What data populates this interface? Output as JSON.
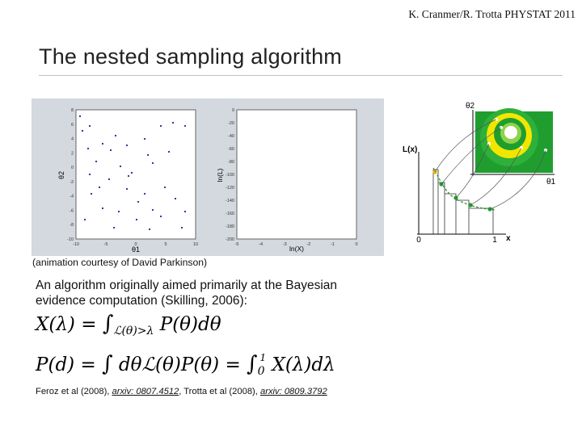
{
  "header_note": "K. Cranmer/R. Trotta PHYSTAT 2011",
  "title": "The nested sampling algorithm",
  "animation": {
    "caption": "(animation courtesy of David Parkinson)",
    "left_plot": {
      "xlabel": "θ1",
      "ylabel": "θ2",
      "x_ticks": [
        "-10",
        "-5",
        "0",
        "5",
        "10"
      ],
      "y_ticks": [
        "8",
        "6",
        "4",
        "2",
        "0",
        "-2",
        "-4",
        "-6",
        "-8",
        "-10"
      ]
    },
    "right_plot": {
      "xlabel": "ln(X)",
      "ylabel": "ln(L)",
      "x_ticks": [
        "-5",
        "-4",
        "-3",
        "-2",
        "-1",
        "0"
      ],
      "y_ticks": [
        "0",
        "-20",
        "-40",
        "-60",
        "-80",
        "-100",
        "-120",
        "-140",
        "-160",
        "-180",
        "-200"
      ]
    }
  },
  "diagram": {
    "theta2_label": "θ2",
    "theta1_label": "θ1",
    "y_axis_label": "L(x)",
    "x_axis_label": "x",
    "x_origin_label": "0",
    "x_end_label": "1",
    "colors": {
      "dark_green": "#1f9e2f",
      "yellow": "#f2e600",
      "light_green": "#8fd24a",
      "white": "#ffffff"
    }
  },
  "body": {
    "text": "An algorithm originally aimed primarily at the Bayesian evidence computation (Skilling, 2006):"
  },
  "references": {
    "prefix": "Feroz et al (2008), ",
    "link1": "arxiv: 0807.4512",
    "middle": ", Trotta et al (2008), ",
    "link2": "arxiv: 0809.3792"
  }
}
